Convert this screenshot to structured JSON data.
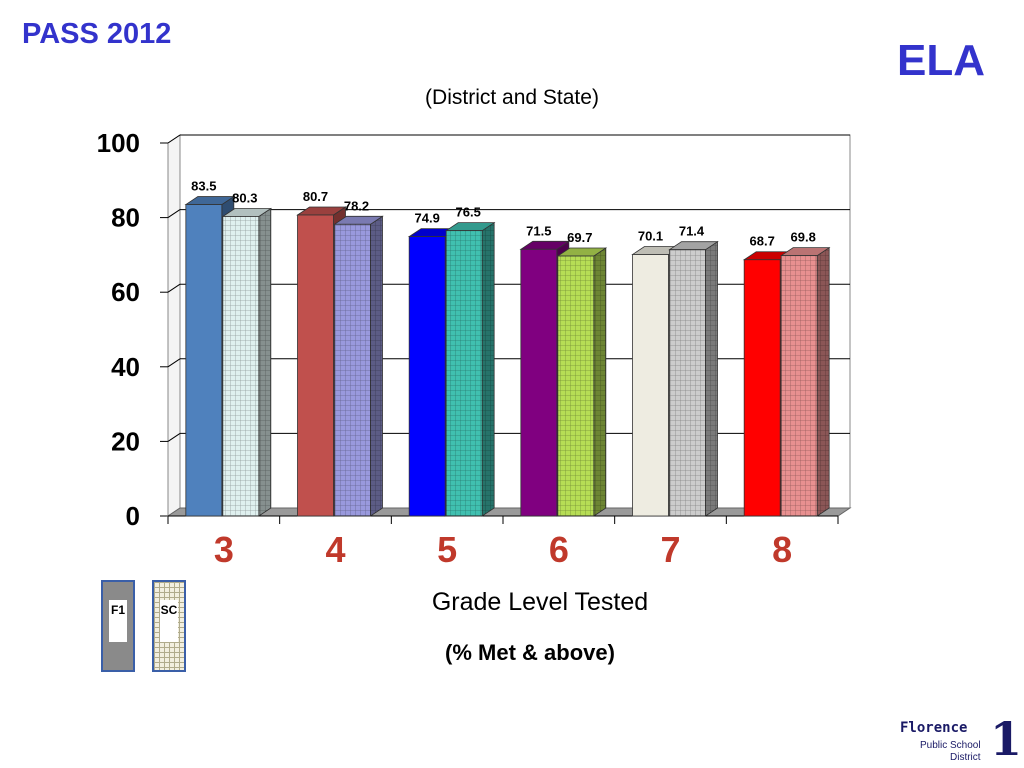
{
  "header": {
    "title": "PASS 2012",
    "subject": "ELA",
    "subtitle": "(District and State)"
  },
  "chart_data": {
    "type": "bar",
    "categories": [
      "3",
      "4",
      "5",
      "6",
      "7",
      "8"
    ],
    "xlabel": "Grade Level Tested",
    "unit_label": "(% Met & above)",
    "ylim": [
      0,
      100
    ],
    "yticks": [
      0,
      20,
      40,
      60,
      80,
      100
    ],
    "grid": true,
    "series": [
      {
        "name": "F1",
        "values": [
          83.5,
          80.7,
          74.9,
          71.5,
          70.1,
          68.7
        ],
        "colors": [
          "#4f81bd",
          "#c0504d",
          "#0000ff",
          "#800080",
          "#eeece1",
          "#ff0000"
        ]
      },
      {
        "name": "SC",
        "values": [
          80.3,
          78.2,
          76.5,
          69.7,
          71.4,
          69.8
        ],
        "colors": [
          "#dff0ef",
          "#9999dd",
          "#40c0b0",
          "#b6dd55",
          "#cccccc",
          "#e89090"
        ]
      }
    ],
    "category_label_color": "#c0392b"
  },
  "legend": {
    "items": [
      {
        "label": "F1",
        "color": "#8a8a8a"
      },
      {
        "label": "SC",
        "color": "#f2efe0"
      }
    ]
  },
  "logo": {
    "name": "Florence",
    "line1": "Public School",
    "line2": "District",
    "number": "1"
  }
}
